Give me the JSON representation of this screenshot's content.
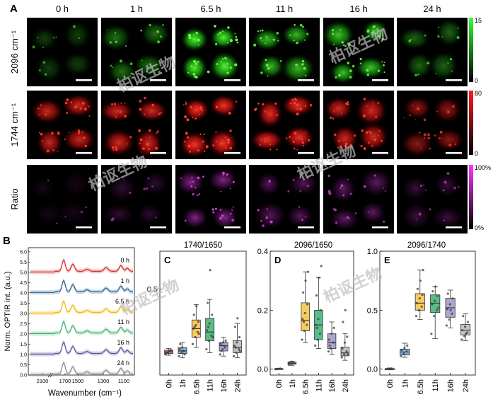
{
  "figure": {
    "panel_A_label": "A",
    "panel_B_label": "B",
    "time_headers": [
      "0 h",
      "1 h",
      "6.5 h",
      "11 h",
      "16 h",
      "24 h"
    ],
    "row_labels": [
      "2096 cm⁻¹",
      "1744 cm⁻¹",
      "Ratio"
    ],
    "colorbars": [
      {
        "max_label": "15",
        "min_label": "0",
        "color": "#33ff33"
      },
      {
        "max_label": "80",
        "min_label": "0",
        "color": "#ff1a1a"
      },
      {
        "max_label": "100%",
        "min_label": "0%",
        "color": "#ff33ff"
      }
    ],
    "watermark": "柏讴生物"
  },
  "spectra": {
    "ylabel": "Norm. OPTIR int. (a.u.)",
    "xlabel": "Wavenumber (cm⁻¹)",
    "yticks": [
      "0.0",
      "0.5",
      "1.0",
      "1.5",
      "2.0",
      "2.5",
      "3.0",
      "3.5",
      "4.0",
      "4.5",
      "5.0",
      "5.5",
      "6.0"
    ],
    "xticks": [
      "2100",
      "1700",
      "1500",
      "1300",
      "1100"
    ],
    "traces": [
      {
        "label": "0 h",
        "color": "#d62728",
        "offset": 5.0
      },
      {
        "label": "1 h",
        "color": "#2b5f8f",
        "offset": 4.0
      },
      {
        "label": "6.5 h",
        "color": "#f2b705",
        "offset": 3.0
      },
      {
        "label": "11 h",
        "color": "#3cb371",
        "offset": 2.0
      },
      {
        "label": "16 h",
        "color": "#5a4e9a",
        "offset": 1.0
      },
      {
        "label": "24 h",
        "color": "#8c8c8c",
        "offset": 0.0
      }
    ]
  },
  "chart_data": [
    {
      "type": "box",
      "panel": "C",
      "title": "1740/1650",
      "categories": [
        "0h",
        "1h",
        "6.5h",
        "11h",
        "16h",
        "24h"
      ],
      "yticks": [
        "0.5"
      ],
      "ylim": [
        0,
        0.72
      ],
      "colors": [
        "#e06666",
        "#6fa8dc",
        "#f6c342",
        "#3cb371",
        "#9b95c9",
        "#b7b7b7"
      ],
      "boxes": [
        {
          "q1": 0.125,
          "median": 0.135,
          "q3": 0.145,
          "wlo": 0.115,
          "whi": 0.155,
          "points": [
            0.12,
            0.13,
            0.14,
            0.125,
            0.135,
            0.145,
            0.13,
            0.14
          ]
        },
        {
          "q1": 0.125,
          "median": 0.14,
          "q3": 0.16,
          "wlo": 0.1,
          "whi": 0.19,
          "points": [
            0.11,
            0.13,
            0.14,
            0.15,
            0.16,
            0.12,
            0.18,
            0.14
          ]
        },
        {
          "q1": 0.22,
          "median": 0.27,
          "q3": 0.32,
          "wlo": 0.16,
          "whi": 0.41,
          "points": [
            0.18,
            0.22,
            0.25,
            0.27,
            0.29,
            0.31,
            0.35,
            0.4,
            0.24,
            0.28
          ]
        },
        {
          "q1": 0.2,
          "median": 0.25,
          "q3": 0.33,
          "wlo": 0.13,
          "whi": 0.44,
          "points": [
            0.15,
            0.2,
            0.23,
            0.26,
            0.3,
            0.35,
            0.42,
            0.61,
            0.22,
            0.28
          ]
        },
        {
          "q1": 0.14,
          "median": 0.17,
          "q3": 0.19,
          "wlo": 0.11,
          "whi": 0.22,
          "points": [
            0.12,
            0.15,
            0.16,
            0.18,
            0.19,
            0.2,
            0.14,
            0.17
          ]
        },
        {
          "q1": 0.13,
          "median": 0.16,
          "q3": 0.2,
          "wlo": 0.1,
          "whi": 0.3,
          "points": [
            0.11,
            0.13,
            0.15,
            0.17,
            0.19,
            0.22,
            0.28,
            0.33,
            0.14,
            0.16
          ]
        }
      ]
    },
    {
      "type": "box",
      "panel": "D",
      "title": "2096/1650",
      "categories": [
        "0h",
        "1h",
        "6.5h",
        "11h",
        "16h",
        "24h"
      ],
      "yticks": [
        "0.0",
        "0.2",
        "0.4"
      ],
      "ylim": [
        -0.02,
        0.4
      ],
      "colors": [
        "#e06666",
        "#6fa8dc",
        "#f6c342",
        "#3cb371",
        "#9b95c9",
        "#b7b7b7"
      ],
      "boxes": [
        {
          "q1": 0.0,
          "median": 0.001,
          "q3": 0.002,
          "wlo": -0.001,
          "whi": 0.003,
          "points": [
            0.0,
            0.001,
            0.002,
            0.0
          ]
        },
        {
          "q1": 0.017,
          "median": 0.02,
          "q3": 0.024,
          "wlo": 0.013,
          "whi": 0.027,
          "points": [
            0.015,
            0.018,
            0.02,
            0.022,
            0.025
          ]
        },
        {
          "q1": 0.13,
          "median": 0.165,
          "q3": 0.225,
          "wlo": 0.09,
          "whi": 0.33,
          "points": [
            0.1,
            0.13,
            0.15,
            0.17,
            0.19,
            0.22,
            0.26,
            0.3,
            0.33,
            0.16
          ]
        },
        {
          "q1": 0.1,
          "median": 0.15,
          "q3": 0.2,
          "wlo": 0.07,
          "whi": 0.31,
          "points": [
            0.08,
            0.1,
            0.12,
            0.15,
            0.17,
            0.2,
            0.25,
            0.31,
            0.35,
            0.14
          ]
        },
        {
          "q1": 0.07,
          "median": 0.09,
          "q3": 0.12,
          "wlo": 0.05,
          "whi": 0.16,
          "points": [
            0.06,
            0.07,
            0.09,
            0.1,
            0.12,
            0.14,
            0.08
          ]
        },
        {
          "q1": 0.045,
          "median": 0.055,
          "q3": 0.075,
          "wlo": 0.03,
          "whi": 0.12,
          "points": [
            0.04,
            0.05,
            0.06,
            0.07,
            0.09,
            0.11,
            0.16,
            0.2,
            0.05
          ]
        }
      ]
    },
    {
      "type": "box",
      "panel": "E",
      "title": "2096/1740",
      "categories": [
        "0h",
        "1h",
        "6.5h",
        "11h",
        "16h",
        "24h"
      ],
      "yticks": [
        "0.0",
        "0.5",
        "1.0"
      ],
      "ylim": [
        -0.05,
        1.0
      ],
      "colors": [
        "#e06666",
        "#6fa8dc",
        "#f6c342",
        "#3cb371",
        "#9b95c9",
        "#b7b7b7"
      ],
      "boxes": [
        {
          "q1": 0.0,
          "median": 0.0,
          "q3": 0.005,
          "wlo": -0.005,
          "whi": 0.01,
          "points": [
            0.0,
            0.0,
            0.005
          ]
        },
        {
          "q1": 0.12,
          "median": 0.145,
          "q3": 0.17,
          "wlo": 0.1,
          "whi": 0.22,
          "points": [
            0.11,
            0.13,
            0.15,
            0.16,
            0.18,
            0.2
          ]
        },
        {
          "q1": 0.5,
          "median": 0.56,
          "q3": 0.64,
          "wlo": 0.42,
          "whi": 0.84,
          "points": [
            0.45,
            0.5,
            0.53,
            0.56,
            0.6,
            0.63,
            0.68,
            0.75,
            0.84
          ]
        },
        {
          "q1": 0.48,
          "median": 0.56,
          "q3": 0.63,
          "wlo": 0.26,
          "whi": 0.7,
          "points": [
            0.3,
            0.45,
            0.5,
            0.55,
            0.58,
            0.62,
            0.66,
            0.7,
            0.52
          ]
        },
        {
          "q1": 0.44,
          "median": 0.52,
          "q3": 0.6,
          "wlo": 0.35,
          "whi": 0.67,
          "points": [
            0.37,
            0.42,
            0.47,
            0.51,
            0.55,
            0.6,
            0.64,
            0.5
          ]
        },
        {
          "q1": 0.29,
          "median": 0.33,
          "q3": 0.38,
          "wlo": 0.24,
          "whi": 0.47,
          "points": [
            0.25,
            0.28,
            0.31,
            0.33,
            0.36,
            0.4,
            0.45,
            0.3
          ]
        }
      ]
    }
  ]
}
